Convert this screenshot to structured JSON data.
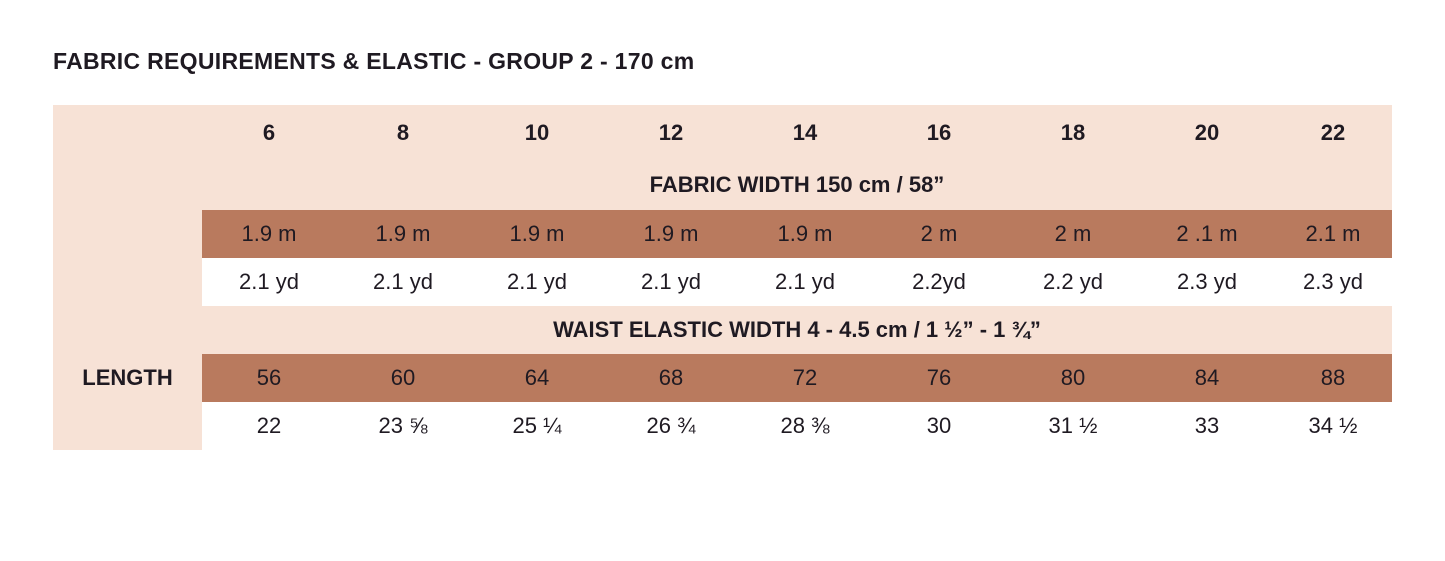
{
  "title": "FABRIC REQUIREMENTS & ELASTIC - GROUP 2 - 170 cm",
  "sizes": [
    "6",
    "8",
    "10",
    "12",
    "14",
    "16",
    "18",
    "20",
    "22"
  ],
  "fabric_width_title": "FABRIC WIDTH 150 cm / 58”",
  "fabric_m": [
    "1.9 m",
    "1.9 m",
    "1.9 m",
    "1.9 m",
    "1.9 m",
    "2 m",
    "2 m",
    "2 .1 m",
    "2.1 m"
  ],
  "fabric_yd": [
    "2.1 yd",
    "2.1 yd",
    "2.1 yd",
    "2.1 yd",
    "2.1 yd",
    "2.2yd",
    "2.2 yd",
    "2.3 yd",
    "2.3 yd"
  ],
  "elastic_title": "WAIST ELASTIC WIDTH 4 - 4.5 cm / 1 ½” - 1 ¾”",
  "row_label": "LENGTH",
  "elastic_cm": [
    "56",
    "60",
    "64",
    "68",
    "72",
    "76",
    "80",
    "84",
    "88"
  ],
  "elastic_in": [
    "22",
    "23 ⅝",
    "25 ¼",
    "26 ¾",
    "28 ⅜",
    "30",
    "31 ½",
    "33",
    "34 ½"
  ],
  "colors": {
    "peach": "#f7e2d6",
    "brown": "#b97a5e",
    "text": "#1f1a22"
  }
}
